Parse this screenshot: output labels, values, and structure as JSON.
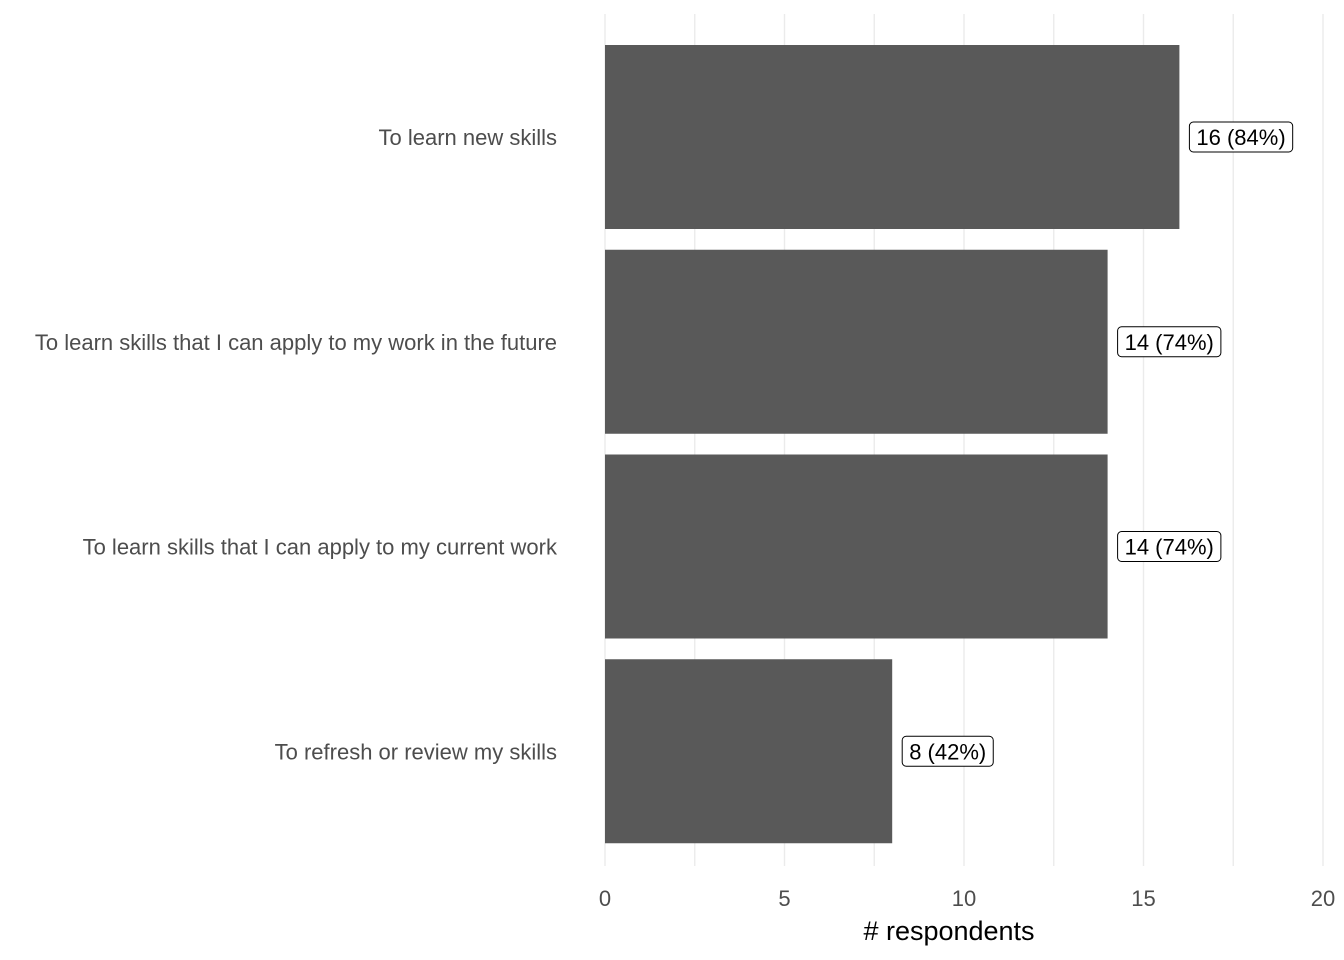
{
  "chart_data": {
    "type": "bar",
    "orientation": "horizontal",
    "categories": [
      "To learn new skills",
      "To learn skills that I can apply to my work in the future",
      "To learn skills that I can apply to my current work",
      "To refresh or review my skills"
    ],
    "values": [
      16,
      14,
      14,
      8
    ],
    "data_labels": [
      "16 (84%)",
      "14 (74%)",
      "14 (74%)",
      "8 (42%)"
    ],
    "xlabel": "# respondents",
    "ylabel": "",
    "xlim": [
      0,
      20
    ],
    "x_ticks": [
      0,
      5,
      10,
      15,
      20
    ],
    "x_tick_labels": [
      "0",
      "5",
      "10",
      "15",
      "20"
    ],
    "grid": true,
    "bar_color": "#595959",
    "grid_color": "#ebebeb"
  }
}
